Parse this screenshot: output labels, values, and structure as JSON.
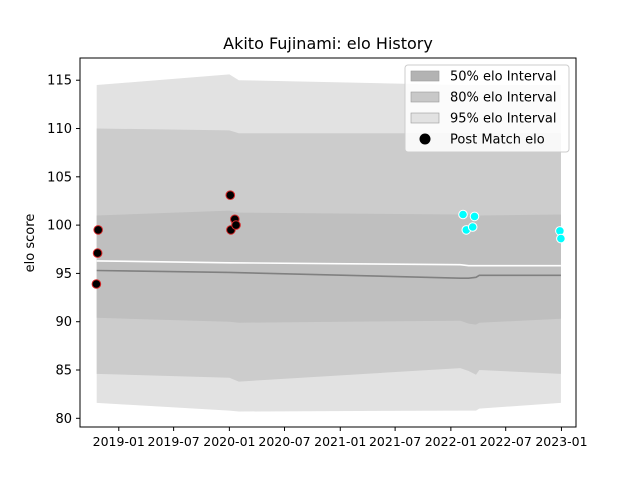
{
  "chart_data": {
    "type": "scatter",
    "title": "Akito Fujinami: elo History",
    "xlabel": "",
    "ylabel": "elo score",
    "xlim": [
      "2018-08-26",
      "2023-02-18"
    ],
    "ylim": [
      79.1,
      117.3
    ],
    "x_ticks": [
      "2019-01",
      "2019-07",
      "2020-01",
      "2020-07",
      "2021-01",
      "2021-07",
      "2022-01",
      "2022-07",
      "2023-01"
    ],
    "y_ticks": [
      80,
      85,
      90,
      95,
      100,
      105,
      110,
      115
    ],
    "grid": false,
    "legend_position": "top-right",
    "legend": [
      {
        "label": "50% elo Interval",
        "kind": "band",
        "color": "#b3b3b3"
      },
      {
        "label": "80% elo Interval",
        "kind": "band",
        "color": "#c8c8c8"
      },
      {
        "label": "95% elo Interval",
        "kind": "band",
        "color": "#e2e2e2"
      },
      {
        "label": "Post Match elo",
        "kind": "point",
        "color": "#000000"
      }
    ],
    "bands": {
      "x": [
        "2018-10-20",
        "2020-01-01",
        "2020-02-01",
        "2022-02-01",
        "2022-03-01",
        "2022-03-25",
        "2022-04-05",
        "2022-12-30"
      ],
      "p95_upper": [
        114.5,
        115.6,
        115.0,
        114.5,
        114.5,
        114.5,
        114.5,
        114.5
      ],
      "p80_upper": [
        110.0,
        109.8,
        109.5,
        109.5,
        109.5,
        109.5,
        109.5,
        109.5
      ],
      "p50_upper": [
        101.0,
        101.5,
        101.3,
        101.1,
        101.1,
        101.0,
        101.0,
        101.1
      ],
      "p50_lower": [
        90.4,
        90.0,
        89.9,
        90.1,
        89.8,
        89.7,
        89.9,
        90.3
      ],
      "p80_lower": [
        84.6,
        84.2,
        83.8,
        85.2,
        84.9,
        84.5,
        85.0,
        84.6
      ],
      "p95_lower": [
        81.6,
        80.8,
        80.7,
        80.8,
        80.8,
        80.8,
        81.0,
        81.6
      ],
      "colors": {
        "p95": "#e2e2e2",
        "p80": "#cccccc",
        "p50": "#bfbfbf"
      }
    },
    "median_line": {
      "x": [
        "2018-10-20",
        "2020-01-01",
        "2022-02-01",
        "2022-03-01",
        "2022-03-25",
        "2022-04-05",
        "2022-12-30"
      ],
      "y": [
        95.3,
        95.1,
        94.5,
        94.5,
        94.6,
        94.8,
        94.8
      ],
      "color": "#808080"
    },
    "mean_line": {
      "x": [
        "2018-10-20",
        "2020-01-01",
        "2022-02-01",
        "2022-03-01",
        "2022-03-25",
        "2022-04-05",
        "2022-12-30"
      ],
      "y": [
        96.3,
        96.1,
        95.9,
        95.8,
        95.8,
        95.8,
        95.8
      ],
      "color": "#ffffff"
    },
    "series": [
      {
        "x": [
          "2018-10-19",
          "2018-10-23",
          "2018-10-25",
          "2020-01-04",
          "2020-01-06",
          "2020-01-19",
          "2020-01-23"
        ],
        "y": [
          93.9,
          97.1,
          99.5,
          103.1,
          99.5,
          100.6,
          100.0
        ],
        "color": "#000000",
        "edge_color": "#d62728"
      },
      {
        "x": [
          "2022-02-10",
          "2022-02-21",
          "2022-03-14",
          "2022-03-20",
          "2022-12-27",
          "2022-12-30"
        ],
        "y": [
          101.1,
          99.5,
          99.8,
          100.9,
          99.4,
          98.6
        ],
        "color": "#00ffff",
        "edge_color": "#ffffff"
      }
    ]
  }
}
